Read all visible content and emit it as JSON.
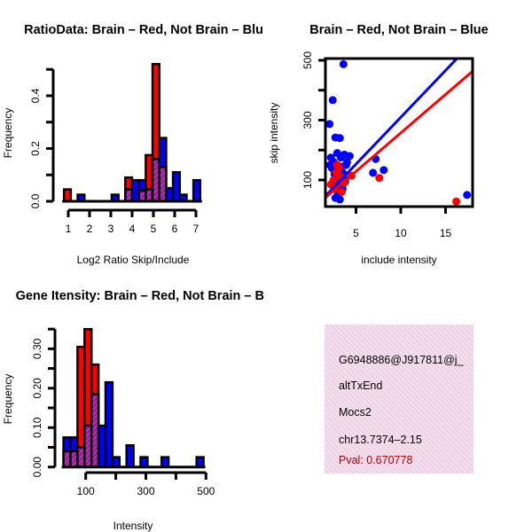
{
  "colors": {
    "red": "#ff0000",
    "blue": "#0000ff",
    "purple": "#9a1a9a",
    "box": "#f5d8f0"
  },
  "chart_data": [
    {
      "type": "bar",
      "title": "RatioData: Brain – Red, Not Brain – Blu",
      "xlabel": "Log2 Ratio Skip/Include",
      "ylabel": "Frequency",
      "xlim": [
        0.7,
        7.5
      ],
      "ylim": [
        0,
        0.52
      ],
      "xticks": [
        1,
        2,
        3,
        4,
        5,
        6,
        7
      ],
      "xtick_labels": [
        "1",
        "2",
        "3",
        "4",
        "5",
        "6",
        "7"
      ],
      "yticks": [
        0,
        0.1,
        0.2,
        0.3,
        0.4,
        0.5
      ],
      "ytick_labels": [
        "0.0",
        "",
        "0.2",
        "",
        "0.4",
        ""
      ],
      "bin_start": 0.8,
      "bin_width": 0.32,
      "series": [
        {
          "name": "Brain",
          "color": "red",
          "values": [
            0.045,
            0,
            0,
            0,
            0,
            0,
            0,
            0,
            0,
            0.09,
            0,
            0.04,
            0.175,
            0.52,
            0.13,
            0,
            0,
            0,
            0,
            0
          ]
        },
        {
          "name": "Not Brain",
          "color": "blue",
          "values": [
            0,
            0,
            0.025,
            0,
            0,
            0,
            0,
            0.025,
            0,
            0.045,
            0.08,
            0.08,
            0.045,
            0.16,
            0.24,
            0.05,
            0.11,
            0.025,
            0,
            0.08
          ]
        }
      ]
    },
    {
      "type": "scatter",
      "title": "Brain – Red, Not Brain – Blue",
      "xlabel": "include intensity",
      "ylabel": "skip intensity",
      "xlim": [
        1.6,
        18
      ],
      "ylim": [
        10,
        505
      ],
      "xticks": [
        5,
        10,
        15
      ],
      "xtick_labels": [
        "5",
        "10",
        "15"
      ],
      "yticks": [
        100,
        200,
        300,
        400,
        500
      ],
      "ytick_labels": [
        "100",
        "",
        "300",
        "",
        "500"
      ],
      "series": [
        {
          "name": "Not Brain",
          "color": "blue",
          "points": [
            [
              3.6,
              487
            ],
            [
              2.4,
              367
            ],
            [
              2.05,
              287
            ],
            [
              2.7,
              242
            ],
            [
              3.2,
              240
            ],
            [
              7.2,
              170
            ],
            [
              6.9,
              124
            ],
            [
              8.1,
              133
            ],
            [
              17.4,
              50
            ],
            [
              2.2,
              175
            ],
            [
              2.5,
              160
            ],
            [
              2.9,
              190
            ],
            [
              3.3,
              175
            ],
            [
              3.7,
              185
            ],
            [
              4.3,
              180
            ],
            [
              4.0,
              160
            ],
            [
              2.3,
              140
            ],
            [
              2.6,
              120
            ],
            [
              3.0,
              130
            ],
            [
              3.4,
              145
            ],
            [
              3.6,
              110
            ],
            [
              2.8,
              95
            ],
            [
              3.1,
              80
            ],
            [
              3.5,
              70
            ],
            [
              3.0,
              55
            ],
            [
              2.7,
              40
            ],
            [
              3.2,
              35
            ],
            [
              2.4,
              90
            ],
            [
              3.8,
              95
            ],
            [
              3.5,
              125
            ],
            [
              2.1,
              150
            ],
            [
              3.9,
              150
            ]
          ]
        },
        {
          "name": "Brain",
          "color": "red",
          "points": [
            [
              7.6,
              107
            ],
            [
              16.2,
              28
            ],
            [
              4.5,
              114
            ],
            [
              2.2,
              85
            ],
            [
              2.5,
              100
            ],
            [
              2.8,
              125
            ],
            [
              3.1,
              140
            ],
            [
              3.3,
              110
            ],
            [
              2.6,
              70
            ],
            [
              3.4,
              60
            ],
            [
              3.7,
              90
            ],
            [
              2.9,
              150
            ]
          ]
        }
      ],
      "fit_lines": [
        {
          "name": "Not Brain",
          "color": "blue",
          "slope": 31.3,
          "intercept": -3.5
        },
        {
          "name": "Brain",
          "color": "red",
          "slope": 25.7,
          "intercept": 0.2
        }
      ]
    },
    {
      "type": "bar",
      "title": "Gene Itensity: Brain – Red, Not Brain – B",
      "xlabel": "Intensity",
      "ylabel": "Frequency",
      "xlim": [
        26,
        500
      ],
      "ylim": [
        0,
        0.35
      ],
      "xticks": [
        100,
        200,
        300,
        400,
        500
      ],
      "xtick_labels": [
        "100",
        "",
        "300",
        "",
        "500"
      ],
      "yticks": [
        0,
        0.05,
        0.1,
        0.15,
        0.2,
        0.25,
        0.3,
        0.35
      ],
      "ytick_labels": [
        "0.00",
        "",
        "0.10",
        "",
        "0.20",
        "",
        "0.30",
        ""
      ],
      "bin_start": 26,
      "bin_width": 23.3,
      "series": [
        {
          "name": "Brain",
          "color": "red",
          "values": [
            0.04,
            0.04,
            0.305,
            0.35,
            0.26,
            0,
            0,
            0,
            0,
            0,
            0,
            0,
            0,
            0,
            0,
            0,
            0,
            0,
            0,
            0
          ]
        },
        {
          "name": "Not Brain",
          "color": "blue",
          "values": [
            0.075,
            0.075,
            0.05,
            0.105,
            0.185,
            0.105,
            0.215,
            0.025,
            0,
            0.055,
            0,
            0.025,
            0,
            0,
            0.025,
            0,
            0,
            0,
            0,
            0.025
          ]
        }
      ]
    }
  ],
  "info_panel": {
    "lines": [
      "G6948886@J917811@j_",
      "altTxEnd",
      "Mocs2",
      "chr13.7374–2.15"
    ],
    "pval": "Pval: 0.670778"
  }
}
